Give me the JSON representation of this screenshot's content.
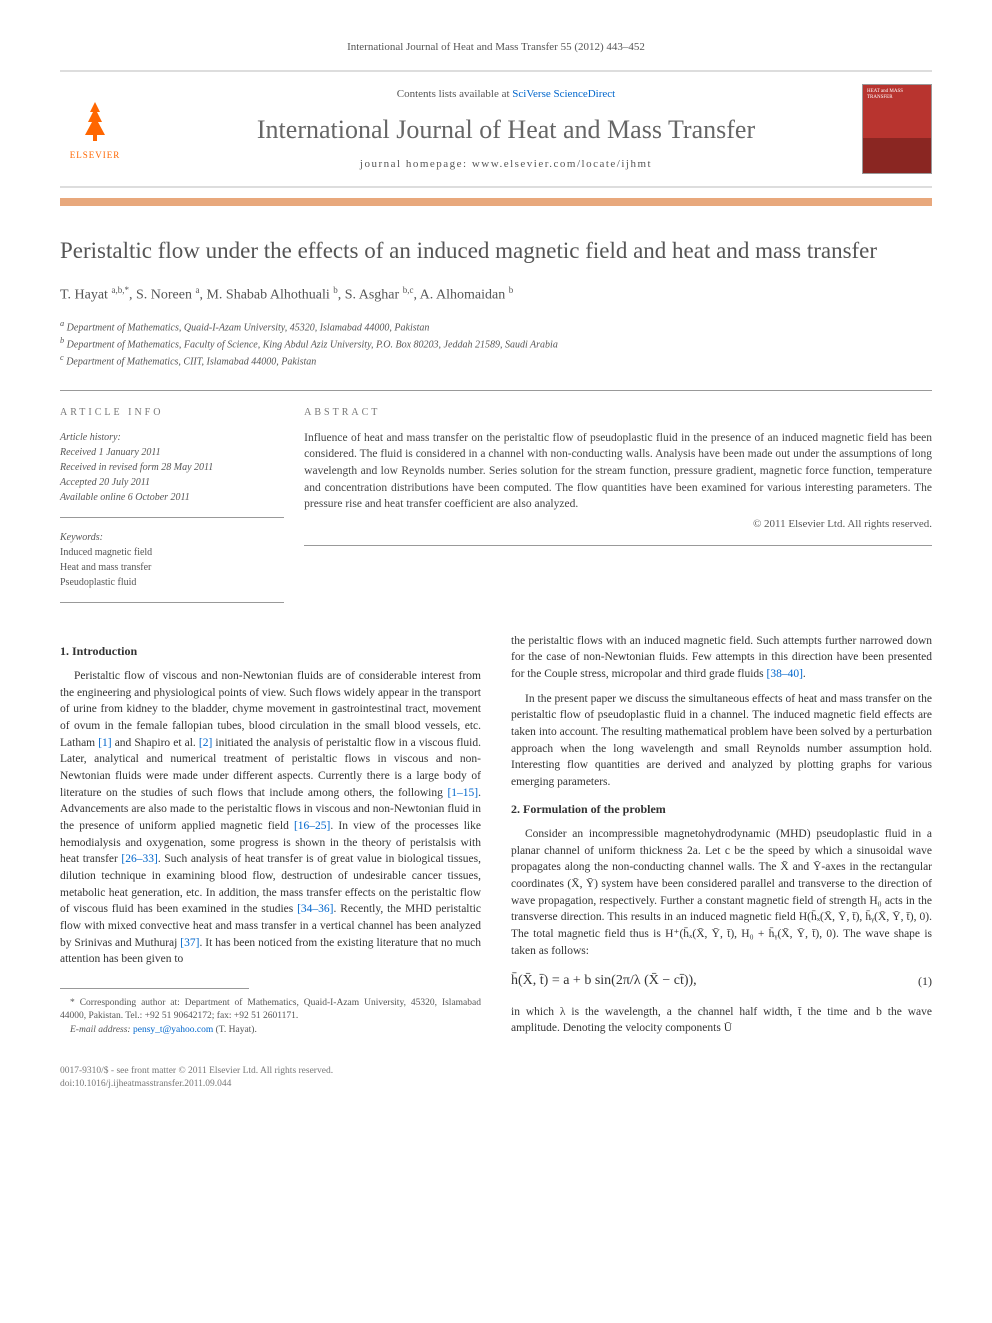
{
  "header": {
    "citation": "International Journal of Heat and Mass Transfer 55 (2012) 443–452",
    "contents_prefix": "Contents lists available at ",
    "contents_link": "SciVerse ScienceDirect",
    "journal_name": "International Journal of Heat and Mass Transfer",
    "homepage": "journal homepage: www.elsevier.com/locate/ijhmt",
    "elsevier": "ELSEVIER",
    "cover_text": "HEAT and MASS TRANSFER"
  },
  "title": "Peristaltic flow under the effects of an induced magnetic field and heat and mass transfer",
  "authors_html": "T. Hayat <sup>a,b,*</sup>, S. Noreen <sup>a</sup>, M. Shabab Alhothuali <sup>b</sup>, S. Asghar <sup>b,c</sup>, A. Alhomaidan <sup>b</sup>",
  "affiliations": [
    "a Department of Mathematics, Quaid-I-Azam University, 45320, Islamabad 44000, Pakistan",
    "b Department of Mathematics, Faculty of Science, King Abdul Aziz University, P.O. Box 80203, Jeddah 21589, Saudi Arabia",
    "c Department of Mathematics, CIIT, Islamabad 44000, Pakistan"
  ],
  "article_info": {
    "heading": "ARTICLE INFO",
    "history_label": "Article history:",
    "history": [
      "Received 1 January 2011",
      "Received in revised form 28 May 2011",
      "Accepted 20 July 2011",
      "Available online 6 October 2011"
    ],
    "keywords_label": "Keywords:",
    "keywords": [
      "Induced magnetic field",
      "Heat and mass transfer",
      "Pseudoplastic fluid"
    ]
  },
  "abstract": {
    "heading": "ABSTRACT",
    "text": "Influence of heat and mass transfer on the peristaltic flow of pseudoplastic fluid in the presence of an induced magnetic field has been considered. The fluid is considered in a channel with non-conducting walls. Analysis have been made out under the assumptions of long wavelength and low Reynolds number. Series solution for the stream function, pressure gradient, magnetic force function, temperature and concentration distributions have been computed. The flow quantities have been examined for various interesting parameters. The pressure rise and heat transfer coefficient are also analyzed.",
    "copyright": "© 2011 Elsevier Ltd. All rights reserved."
  },
  "sections": {
    "intro_heading": "1. Introduction",
    "intro_p1_pre": "Peristaltic flow of viscous and non-Newtonian fluids are of considerable interest from the engineering and physiological points of view. Such flows widely appear in the transport of urine from kidney to the bladder, chyme movement in gastrointestinal tract, movement of ovum in the female fallopian tubes, blood circulation in the small blood vessels, etc. Latham ",
    "ref1": "[1]",
    "intro_p1_mid1": " and Shapiro et al. ",
    "ref2": "[2]",
    "intro_p1_mid2": " initiated the analysis of peristaltic flow in a viscous fluid. Later, analytical and numerical treatment of peristaltic flows in viscous and non-Newtonian fluids were made under different aspects. Currently there is a large body of literature on the studies of such flows that include among others, the following ",
    "ref1_15": "[1–15]",
    "intro_p1_mid3": ". Advancements are also made to the peristaltic flows in viscous and non-Newtonian fluid in the presence of uniform applied magnetic field ",
    "ref16_25": "[16–25]",
    "intro_p1_mid4": ". In view of the processes like hemodialysis and oxygenation, some progress is shown in the theory of peristalsis with heat transfer ",
    "ref26_33": "[26–33]",
    "intro_p1_mid5": ". Such analysis of heat transfer is of great value in biological tissues, dilution technique in examining blood flow, destruction of undesirable cancer tissues, metabolic heat generation, etc. In addition, the mass transfer effects on the peristaltic flow of viscous fluid has been examined in the studies ",
    "ref34_36": "[34–36]",
    "intro_p1_mid6": ". Recently, the MHD peristaltic flow with mixed convective heat and mass transfer in a vertical channel has been analyzed by Srinivas and Muthuraj ",
    "ref37": "[37]",
    "intro_p1_end": ". It has been noticed from the existing literature that no much attention has been given to",
    "col2_p1_pre": "the peristaltic flows with an induced magnetic field. Such attempts further narrowed down for the case of non-Newtonian fluids. Few attempts in this direction have been presented for the Couple stress, micropolar and third grade fluids ",
    "ref38_40": "[38–40]",
    "col2_p1_end": ".",
    "col2_p2": "In the present paper we discuss the simultaneous effects of heat and mass transfer on the peristaltic flow of pseudoplastic fluid in a channel. The induced magnetic field effects are taken into account. The resulting mathematical problem have been solved by a perturbation approach when the long wavelength and small Reynolds number assumption hold. Interesting flow quantities are derived and analyzed by plotting graphs for various emerging parameters.",
    "formulation_heading": "2. Formulation of the problem",
    "formulation_p1": "Consider an incompressible magnetohydrodynamic (MHD) pseudoplastic fluid in a planar channel of uniform thickness 2a. Let c be the speed by which a sinusoidal wave propagates along the non-conducting channel walls. The X̄ and Ȳ-axes in the rectangular coordinates (X̄, Ȳ) system have been considered parallel and transverse to the direction of wave propagation, respectively. Further a constant magnetic field of strength H₀ acts in the transverse direction. This results in an induced magnetic field H(h̄ₓ(X̄, Ȳ, t̄), h̄ᵧ(X̄, Ȳ, t̄), 0). The total magnetic field thus is H⁺(h̄ₓ(X̄, Ȳ, t̄), H₀ + h̄ᵧ(X̄, Ȳ, t̄), 0). The wave shape is taken as follows:",
    "equation1": "h̄(X̄, t̄) = a + b sin(2π/λ (X̄ − ct̄)),",
    "eq1_num": "(1)",
    "formulation_p2": "in which λ is the wavelength, a the channel half width, t̄ the time and b the wave amplitude. Denoting the velocity components Ū"
  },
  "footnote": {
    "corresponding": "* Corresponding author at: Department of Mathematics, Quaid-I-Azam University, 45320, Islamabad 44000, Pakistan. Tel.: +92 51 90642172; fax: +92 51 2601171.",
    "email_label": "E-mail address: ",
    "email": "pensy_t@yahoo.com",
    "email_suffix": " (T. Hayat)."
  },
  "bottom": {
    "left1": "0017-9310/$ - see front matter © 2011 Elsevier Ltd. All rights reserved.",
    "left2": "doi:10.1016/j.ijheatmasstransfer.2011.09.044"
  },
  "colors": {
    "accent_orange": "#ff6600",
    "link": "#0066cc",
    "divider": "#e8a87c",
    "cover": "#b8342f"
  }
}
